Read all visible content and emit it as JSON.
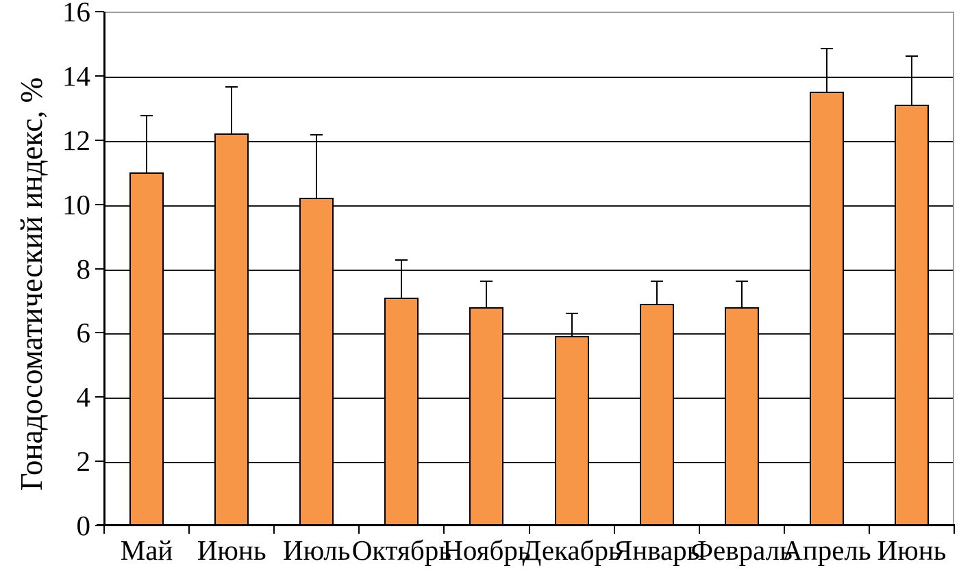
{
  "chart_data": {
    "type": "bar",
    "title": "",
    "xlabel": "",
    "ylabel": "Гонадосоматический индекс, %",
    "ylim": [
      0,
      16
    ],
    "ytick_step": 2,
    "yticks": [
      0,
      2,
      4,
      6,
      8,
      10,
      12,
      14,
      16
    ],
    "grid": "horizontal gridlines every 2 units",
    "legend_position": "none",
    "categories": [
      "Май",
      "Июнь",
      "Июль",
      "Октябрь",
      "Ноябрь",
      "Декабрь",
      "Январь",
      "Февраль",
      "Апрель",
      "Июнь"
    ],
    "series": [
      {
        "name": "Гонадосоматический индекс",
        "values": [
          11.0,
          12.2,
          10.2,
          7.1,
          6.8,
          5.9,
          6.9,
          6.8,
          13.5,
          13.1
        ],
        "error_plus": [
          1.8,
          1.5,
          2.0,
          1.2,
          0.85,
          0.75,
          0.75,
          0.85,
          1.4,
          1.55
        ]
      }
    ],
    "colors": {
      "bar_fill": "#F79646",
      "bar_border": "#000000",
      "gridline": "#1a1a1a",
      "axis": "#000000",
      "plot_frame": "#9c9c9c",
      "text": "#000000",
      "background": "#ffffff"
    }
  }
}
